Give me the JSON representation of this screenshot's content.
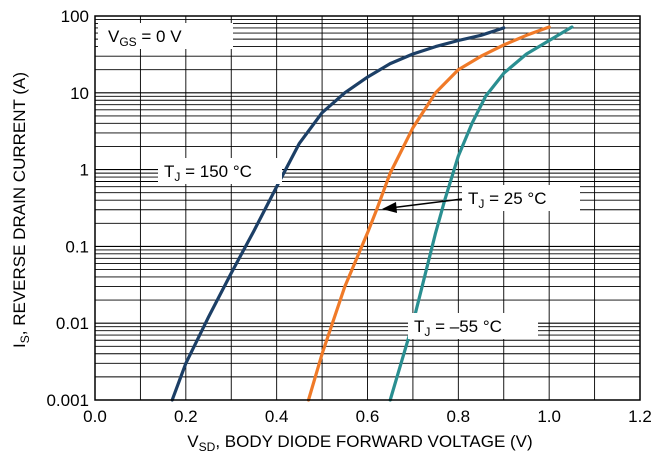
{
  "chart_data": {
    "type": "line",
    "xscale": "linear",
    "yscale": "log",
    "xlim": [
      0.0,
      1.2
    ],
    "ylim": [
      0.001,
      100
    ],
    "grid": true,
    "x_ticks": [
      "0.0",
      "0.2",
      "0.4",
      "0.6",
      "0.8",
      "1.0",
      "1.2"
    ],
    "y_ticks": [
      "0.001",
      "0.01",
      "0.1",
      "1",
      "10",
      "100"
    ],
    "xlabel": {
      "main": "V",
      "sub": "SD",
      "rest": ", BODY DIODE FORWARD VOLTAGE (V)"
    },
    "ylabel": {
      "main": "I",
      "sub": "S",
      "rest": ", REVERSE DRAIN CURRENT (A)"
    },
    "condition": {
      "main": "V",
      "sub": "GS",
      "rest": " = 0 V"
    },
    "series": [
      {
        "name": "T_J = 150 °C",
        "label": {
          "main": "T",
          "sub": "J",
          "rest": " = 150 °C"
        },
        "color": "#1c3f66",
        "points": [
          [
            0.17,
            0.001
          ],
          [
            0.2,
            0.003
          ],
          [
            0.25,
            0.012
          ],
          [
            0.3,
            0.045
          ],
          [
            0.35,
            0.16
          ],
          [
            0.4,
            0.6
          ],
          [
            0.45,
            2.2
          ],
          [
            0.5,
            5.5
          ],
          [
            0.55,
            10
          ],
          [
            0.6,
            16
          ],
          [
            0.65,
            24
          ],
          [
            0.7,
            32
          ],
          [
            0.75,
            40
          ],
          [
            0.8,
            48
          ],
          [
            0.85,
            56
          ],
          [
            0.9,
            70
          ]
        ]
      },
      {
        "name": "T_J = 25 °C",
        "label": {
          "main": "T",
          "sub": "J",
          "rest": " = 25 °C"
        },
        "color": "#f07a28",
        "points": [
          [
            0.47,
            0.001
          ],
          [
            0.5,
            0.004
          ],
          [
            0.55,
            0.03
          ],
          [
            0.6,
            0.15
          ],
          [
            0.62,
            0.3
          ],
          [
            0.65,
            0.9
          ],
          [
            0.7,
            3.5
          ],
          [
            0.75,
            10
          ],
          [
            0.8,
            20
          ],
          [
            0.85,
            30
          ],
          [
            0.9,
            42
          ],
          [
            0.95,
            56
          ],
          [
            1.0,
            72
          ]
        ]
      },
      {
        "name": "T_J = -55 °C",
        "label": {
          "main": "T",
          "sub": "J",
          "rest": " = –55 °C"
        },
        "color": "#2a8f91",
        "points": [
          [
            0.65,
            0.001
          ],
          [
            0.7,
            0.01
          ],
          [
            0.75,
            0.15
          ],
          [
            0.77,
            0.4
          ],
          [
            0.8,
            1.5
          ],
          [
            0.83,
            4
          ],
          [
            0.86,
            9
          ],
          [
            0.9,
            18
          ],
          [
            0.95,
            32
          ],
          [
            1.0,
            48
          ],
          [
            1.05,
            72
          ]
        ]
      }
    ]
  }
}
